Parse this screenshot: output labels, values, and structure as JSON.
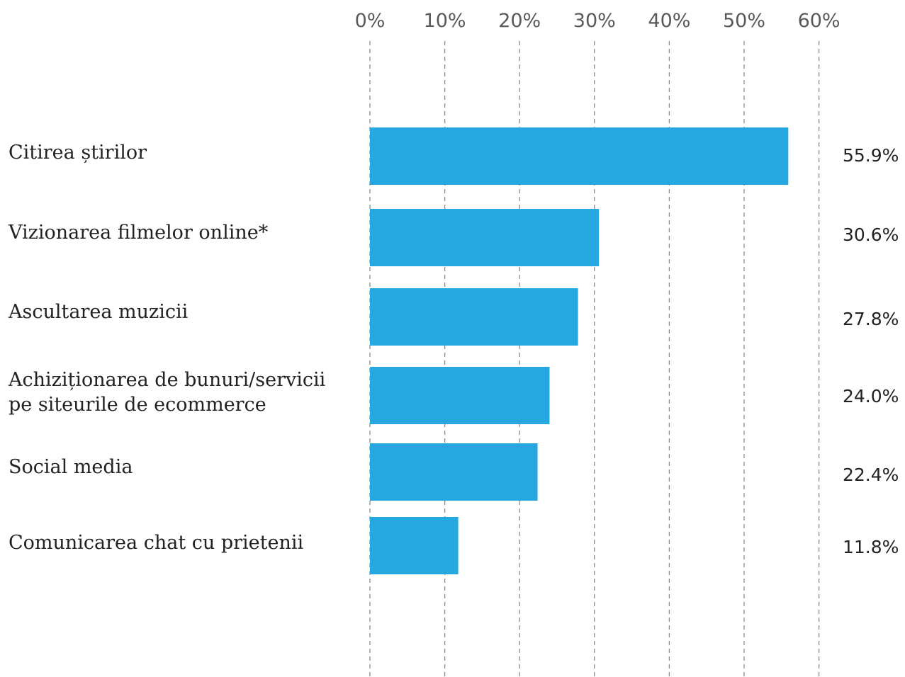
{
  "chart_data": {
    "type": "bar",
    "orientation": "horizontal",
    "categories": [
      "Citirea știrilor",
      "Vizionarea filmelor online*",
      "Ascultarea muzicii",
      "Achiziționarea de bunuri/servicii pe siteurile de ecommerce",
      "Social media",
      "Comunicarea chat cu prietenii"
    ],
    "category_lines": [
      [
        "Citirea știrilor"
      ],
      [
        "Vizionarea filmelor online*"
      ],
      [
        "Ascultarea muzicii"
      ],
      [
        "Achiziționarea de bunuri/servicii",
        "pe siteurile de ecommerce"
      ],
      [
        "Social media"
      ],
      [
        "Comunicarea chat cu prietenii"
      ]
    ],
    "values": [
      55.9,
      30.6,
      27.8,
      24.0,
      22.4,
      11.8
    ],
    "value_labels": [
      "55.9%",
      "30.6%",
      "27.8%",
      "24.0%",
      "22.4%",
      "11.8%"
    ],
    "xticks": [
      0,
      10,
      20,
      30,
      40,
      50,
      60
    ],
    "xtick_labels": [
      "0%",
      "10%",
      "20%",
      "30%",
      "40%",
      "50%",
      "60%"
    ],
    "xlim": [
      0,
      60
    ],
    "axis_position": "top",
    "grid": "vertical dashed",
    "legend": "none",
    "title": "",
    "xlabel": "",
    "ylabel": "",
    "colors": {
      "bar": "#27a7e0",
      "grid": "#8c8c8c",
      "tick_text": "#595959",
      "label_text": "#222222"
    }
  }
}
